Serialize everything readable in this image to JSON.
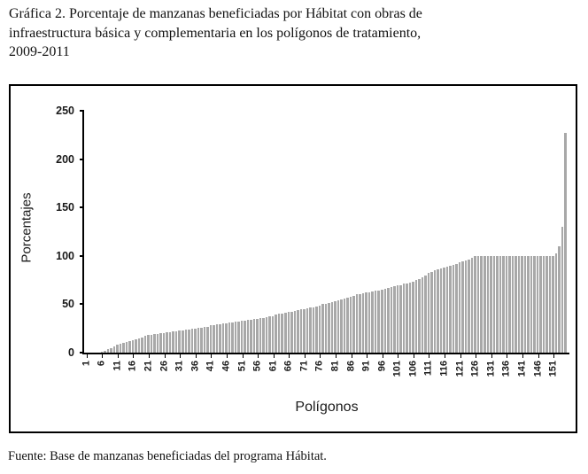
{
  "caption": {
    "lines": [
      "Gráfica 2. Porcentaje de manzanas beneficiadas por Hábitat con obras de",
      "infraestructura básica y complementaria en los polígonos de tratamiento,",
      "2009-2011"
    ]
  },
  "source": "Fuente: Base de manzanas beneficiadas del programa Hábitat.",
  "chart_data": {
    "type": "bar",
    "title": "Gráfica 2. Porcentaje de manzanas beneficiadas por Hábitat con obras de infraestructura básica y complementaria en los polígonos de tratamiento, 2009-2011",
    "xlabel": "Polígonos",
    "ylabel": "Porcentajes",
    "ylim": [
      0,
      250
    ],
    "yticks": [
      0,
      50,
      100,
      150,
      200,
      250
    ],
    "xtick_step": 5,
    "xtick_labels": [
      1,
      6,
      11,
      16,
      21,
      26,
      31,
      36,
      41,
      46,
      51,
      56,
      61,
      66,
      71,
      76,
      81,
      86,
      91,
      96,
      101,
      106,
      111,
      116,
      121,
      126,
      131,
      136,
      141,
      146,
      151
    ],
    "bar_color": "#a8a8a8",
    "grid": false,
    "legend": false,
    "values": [
      0,
      0,
      0,
      0,
      0,
      1,
      2,
      4,
      5,
      6,
      8,
      9,
      10,
      11,
      12,
      13,
      14,
      15,
      16,
      17,
      18,
      18,
      19,
      19,
      20,
      20,
      21,
      21,
      22,
      22,
      23,
      23,
      24,
      24,
      25,
      25,
      26,
      26,
      27,
      27,
      28,
      28,
      29,
      29,
      30,
      30,
      31,
      31,
      32,
      32,
      33,
      33,
      34,
      34,
      35,
      35,
      36,
      36,
      37,
      38,
      38,
      39,
      40,
      40,
      41,
      42,
      42,
      43,
      44,
      45,
      45,
      46,
      47,
      47,
      48,
      49,
      50,
      50,
      51,
      52,
      53,
      54,
      55,
      56,
      57,
      58,
      59,
      60,
      60,
      61,
      62,
      62,
      63,
      64,
      64,
      65,
      66,
      67,
      68,
      69,
      70,
      70,
      71,
      71,
      72,
      73,
      75,
      76,
      78,
      80,
      82,
      83,
      85,
      86,
      87,
      88,
      89,
      90,
      91,
      92,
      93,
      94,
      95,
      96,
      98,
      100,
      100,
      100,
      100,
      100,
      100,
      100,
      100,
      100,
      100,
      100,
      100,
      100,
      100,
      100,
      100,
      100,
      100,
      100,
      100,
      100,
      100,
      100,
      100,
      100,
      100,
      103,
      110,
      130,
      227
    ]
  }
}
